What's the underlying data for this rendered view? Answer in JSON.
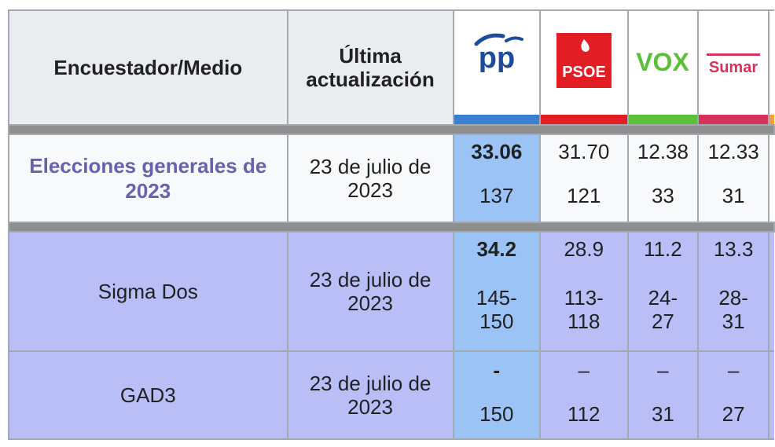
{
  "header": {
    "col_pollster": "Encuestador/Medio",
    "col_updated": "Última actualización",
    "parties": [
      {
        "name": "pp",
        "color": "#3a7fd0",
        "logo_text": "pp",
        "logo_color": "#1d4c9c"
      },
      {
        "name": "PSOE",
        "color": "#e21e24",
        "logo_text": "PSOE",
        "logo_color": "#ffffff"
      },
      {
        "name": "VOX",
        "color": "#5ac035",
        "logo_text": "VOX",
        "logo_color": "#5ac035"
      },
      {
        "name": "Sumar",
        "color": "#d6325c",
        "logo_text": "Sumar",
        "logo_color": "#d6325c"
      }
    ]
  },
  "rows": [
    {
      "name": "Elecciones generales de 2023",
      "date": "23 de julio de 2023",
      "values": [
        {
          "pct": "33.06",
          "seats": "137"
        },
        {
          "pct": "31.70",
          "seats": "121"
        },
        {
          "pct": "12.38",
          "seats": "33"
        },
        {
          "pct": "12.33",
          "seats": "31"
        }
      ]
    },
    {
      "name": "Sigma Dos",
      "date": "23 de julio de 2023",
      "values": [
        {
          "pct": "34.2",
          "seats": "145-\n150"
        },
        {
          "pct": "28.9",
          "seats": "113-\n118"
        },
        {
          "pct": "11.2",
          "seats": "24-\n27"
        },
        {
          "pct": "13.3",
          "seats": "28-\n31"
        }
      ]
    },
    {
      "name": "GAD3",
      "date": "23 de julio de 2023",
      "values": [
        {
          "pct": "-",
          "seats": "150"
        },
        {
          "pct": "–",
          "seats": "112"
        },
        {
          "pct": "–",
          "seats": "31"
        },
        {
          "pct": "–",
          "seats": "27"
        }
      ]
    }
  ]
}
